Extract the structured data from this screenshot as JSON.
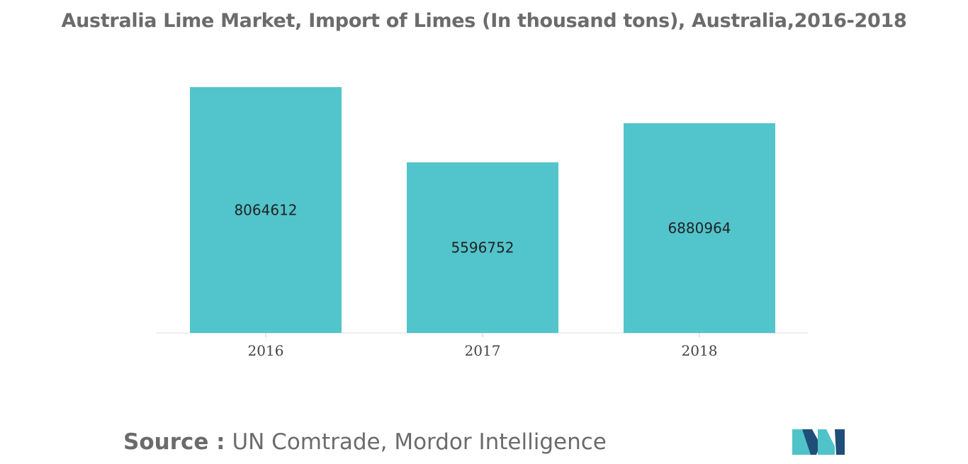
{
  "chart_data": {
    "type": "bar",
    "title": "Australia Lime Market, Import of Limes (In thousand tons), Australia,2016-2018",
    "categories": [
      "2016",
      "2017",
      "2018"
    ],
    "values": [
      8064612,
      5596752,
      6880964
    ],
    "data_labels": [
      "8064612",
      "5596752",
      "6880964"
    ],
    "xlabel": "",
    "ylabel": "",
    "ylim": [
      0,
      8064612
    ],
    "grid": false,
    "legend": "none",
    "bar_color": "#52c4cb"
  },
  "source": {
    "label": "Source :",
    "text": "UN Comtrade, Mordor Intelligence"
  },
  "logo": {
    "icon": "mordor-intelligence-logo-icon",
    "colors": [
      "#4fc3c9",
      "#1f4e79"
    ]
  }
}
